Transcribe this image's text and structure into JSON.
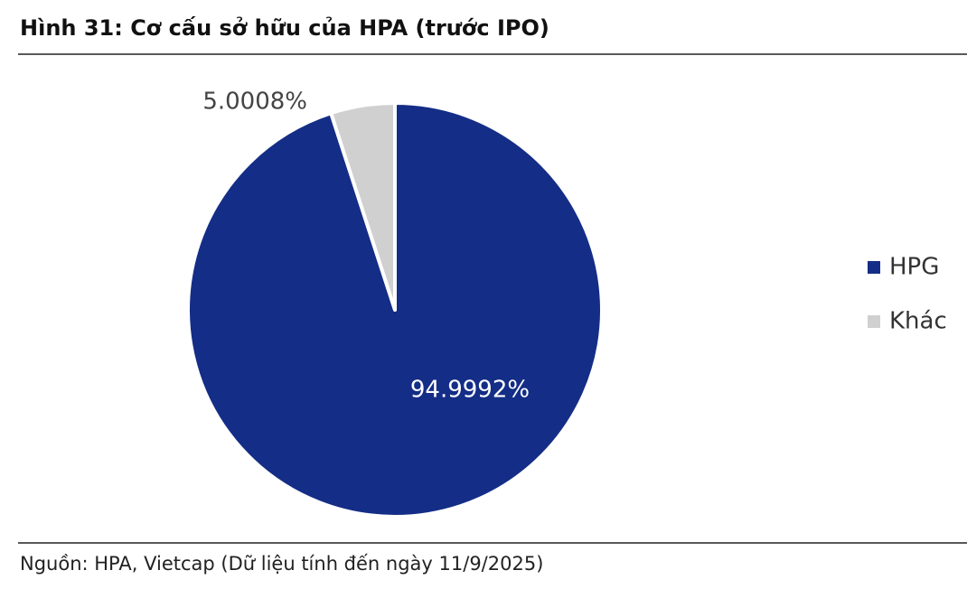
{
  "chart_data": {
    "type": "pie",
    "title": "Hình 31: Cơ cấu sở hữu của HPA (trước IPO)",
    "categories": [
      "HPG",
      "Khác"
    ],
    "values": [
      94.9992,
      5.0008
    ],
    "value_labels": [
      "94.9992%",
      "5.0008%"
    ],
    "colors": [
      "#142d86",
      "#d0d0d0"
    ],
    "legend": "right",
    "source": "Nguồn: HPA, Vietcap (Dữ liệu tính đến ngày 11/9/2025)"
  }
}
